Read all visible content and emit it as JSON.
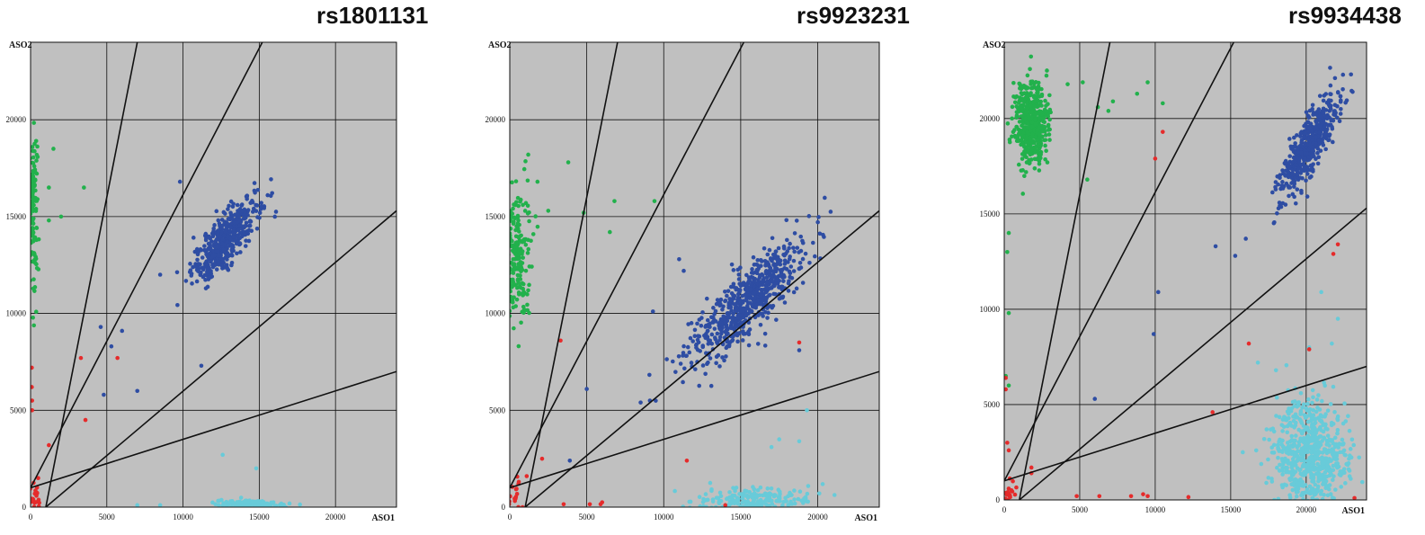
{
  "chart_data": [
    {
      "type": "scatter",
      "title": "rs1801131",
      "xlabel": "ASO1",
      "ylabel": "ASO2",
      "xlim": [
        0,
        24000
      ],
      "ylim": [
        0,
        24000
      ],
      "xticks": [
        0,
        5000,
        10000,
        15000,
        20000
      ],
      "yticks": [
        0,
        5000,
        10000,
        15000,
        20000
      ],
      "grid": true,
      "cluster_lines": [
        {
          "x1": 1000,
          "y1": 0,
          "x2": 7000,
          "y2": 24000
        },
        {
          "x1": 0,
          "y1": 1000,
          "x2": 15200,
          "y2": 24000
        },
        {
          "x1": 1000,
          "y1": 0,
          "x2": 24000,
          "y2": 15300
        },
        {
          "x1": 0,
          "y1": 1000,
          "x2": 24000,
          "y2": 7000
        }
      ],
      "series": [
        {
          "color": "#22b14c",
          "clusters": [
            {
              "cx": 150,
              "cy": 15500,
              "sx": 150,
              "sy": 2000,
              "n": 140
            }
          ],
          "points": [
            [
              1200,
              16500
            ],
            [
              1500,
              18500
            ],
            [
              2000,
              15000
            ],
            [
              3500,
              16500
            ],
            [
              1200,
              14800
            ]
          ]
        },
        {
          "color": "#2e4da3",
          "clusters": [
            {
              "cx": 12800,
              "cy": 13800,
              "sx": 1100,
              "sy": 1100,
              "corr": 0.8,
              "n": 450
            }
          ],
          "points": [
            [
              4600,
              9300
            ],
            [
              5300,
              8300
            ],
            [
              6000,
              9100
            ],
            [
              4800,
              5800
            ],
            [
              7000,
              6000
            ],
            [
              11200,
              7300
            ],
            [
              8500,
              12000
            ],
            [
              9800,
              16800
            ]
          ]
        },
        {
          "color": "#68cbd9",
          "clusters": [
            {
              "cx": 14500,
              "cy": 150,
              "sx": 1200,
              "sy": 120,
              "n": 130
            }
          ],
          "points": [
            [
              12600,
              2700
            ],
            [
              14800,
              2000
            ],
            [
              7000,
              100
            ],
            [
              8500,
              100
            ]
          ]
        },
        {
          "color": "#e52b2b",
          "clusters": [
            {
              "cx": 200,
              "cy": 300,
              "sx": 250,
              "sy": 300,
              "n": 25
            }
          ],
          "points": [
            [
              80,
              7200
            ],
            [
              80,
              6200
            ],
            [
              100,
              5500
            ],
            [
              100,
              5000
            ],
            [
              3300,
              7700
            ],
            [
              5700,
              7700
            ],
            [
              3600,
              4500
            ],
            [
              1200,
              3200
            ],
            [
              500,
              1500
            ]
          ]
        }
      ]
    },
    {
      "type": "scatter",
      "title": "rs9923231",
      "xlabel": "ASO1",
      "ylabel": "ASO2",
      "xlim": [
        0,
        24000
      ],
      "ylim": [
        0,
        24000
      ],
      "xticks": [
        0,
        5000,
        10000,
        15000,
        20000
      ],
      "yticks": [
        0,
        5000,
        10000,
        15000,
        20000
      ],
      "grid": true,
      "cluster_lines": [
        {
          "x1": 1000,
          "y1": 0,
          "x2": 7000,
          "y2": 24000
        },
        {
          "x1": 0,
          "y1": 1000,
          "x2": 15200,
          "y2": 24000
        },
        {
          "x1": 1000,
          "y1": 0,
          "x2": 24000,
          "y2": 15300
        },
        {
          "x1": 0,
          "y1": 1000,
          "x2": 24000,
          "y2": 7000
        }
      ],
      "series": [
        {
          "color": "#22b14c",
          "clusters": [
            {
              "cx": 400,
              "cy": 13000,
              "sx": 500,
              "sy": 1800,
              "n": 220
            }
          ],
          "points": [
            [
              3800,
              17800
            ],
            [
              4800,
              15200
            ],
            [
              6800,
              15800
            ],
            [
              9400,
              15800
            ],
            [
              6500,
              14200
            ],
            [
              2500,
              15300
            ],
            [
              1800,
              16800
            ],
            [
              1200,
              18200
            ]
          ]
        },
        {
          "color": "#2e4da3",
          "clusters": [
            {
              "cx": 15300,
              "cy": 10500,
              "sx": 1900,
              "sy": 1600,
              "corr": 0.85,
              "n": 650
            }
          ],
          "points": [
            [
              9300,
              10100
            ],
            [
              11000,
              12800
            ],
            [
              11300,
              12200
            ],
            [
              8500,
              5400
            ],
            [
              9100,
              5500
            ],
            [
              5000,
              6100
            ],
            [
              3900,
              2400
            ],
            [
              18800,
              8100
            ]
          ]
        },
        {
          "color": "#68cbd9",
          "clusters": [
            {
              "cx": 16000,
              "cy": 300,
              "sx": 2200,
              "sy": 350,
              "n": 220
            }
          ],
          "points": [
            [
              19300,
              5000
            ],
            [
              18800,
              3400
            ],
            [
              17000,
              3100
            ],
            [
              17500,
              3500
            ]
          ]
        },
        {
          "color": "#e52b2b",
          "clusters": [
            {
              "cx": 300,
              "cy": 400,
              "sx": 350,
              "sy": 600,
              "n": 25
            }
          ],
          "points": [
            [
              3300,
              8600
            ],
            [
              2100,
              2500
            ],
            [
              1100,
              1600
            ],
            [
              11500,
              2400
            ],
            [
              18800,
              8500
            ],
            [
              3500,
              150
            ],
            [
              5200,
              150
            ],
            [
              5900,
              150
            ],
            [
              6000,
              250
            ],
            [
              14000,
              100
            ]
          ]
        }
      ]
    },
    {
      "type": "scatter",
      "title": "rs9934438",
      "xlabel": "ASO1",
      "ylabel": "ASO2",
      "xlim": [
        0,
        24000
      ],
      "ylim": [
        0,
        24000
      ],
      "xticks": [
        0,
        5000,
        10000,
        15000,
        20000
      ],
      "yticks": [
        0,
        5000,
        10000,
        15000,
        20000
      ],
      "grid": true,
      "cluster_lines": [
        {
          "x1": 1000,
          "y1": 0,
          "x2": 7000,
          "y2": 24000
        },
        {
          "x1": 0,
          "y1": 1000,
          "x2": 15200,
          "y2": 24000
        },
        {
          "x1": 1000,
          "y1": 0,
          "x2": 24000,
          "y2": 15300
        },
        {
          "x1": 0,
          "y1": 1000,
          "x2": 24000,
          "y2": 7000
        }
      ],
      "series": [
        {
          "color": "#22b14c",
          "clusters": [
            {
              "cx": 1800,
              "cy": 19700,
              "sx": 550,
              "sy": 1100,
              "n": 500
            }
          ],
          "points": [
            [
              6200,
              20600
            ],
            [
              6900,
              20400
            ],
            [
              7200,
              20900
            ],
            [
              8800,
              21300
            ],
            [
              9500,
              21900
            ],
            [
              10500,
              20800
            ],
            [
              5200,
              21900
            ],
            [
              4200,
              21800
            ],
            [
              300,
              14000
            ],
            [
              200,
              13000
            ],
            [
              300,
              9800
            ],
            [
              100,
              6500
            ],
            [
              300,
              6000
            ],
            [
              5500,
              16800
            ]
          ]
        },
        {
          "color": "#2e4da3",
          "clusters": [
            {
              "cx": 20200,
              "cy": 18600,
              "sx": 1000,
              "sy": 1400,
              "corr": 0.85,
              "n": 500
            }
          ],
          "points": [
            [
              14000,
              13300
            ],
            [
              16000,
              13700
            ],
            [
              15300,
              12800
            ],
            [
              10200,
              10900
            ],
            [
              9900,
              8700
            ],
            [
              6000,
              5300
            ]
          ]
        },
        {
          "color": "#68cbd9",
          "clusters": [
            {
              "cx": 20300,
              "cy": 2300,
              "sx": 1200,
              "sy": 1500,
              "n": 700
            }
          ],
          "points": [
            [
              21000,
              10900
            ],
            [
              22100,
              9500
            ],
            [
              21700,
              8200
            ],
            [
              20200,
              8000
            ],
            [
              16800,
              7200
            ],
            [
              18000,
              6800
            ],
            [
              15800,
              2500
            ]
          ]
        },
        {
          "color": "#e52b2b",
          "clusters": [
            {
              "cx": 250,
              "cy": 300,
              "sx": 300,
              "sy": 300,
              "n": 25
            }
          ],
          "points": [
            [
              10500,
              19300
            ],
            [
              10000,
              17900
            ],
            [
              22100,
              13400
            ],
            [
              21800,
              12900
            ],
            [
              16200,
              8200
            ],
            [
              20200,
              7900
            ],
            [
              13800,
              4600
            ],
            [
              100,
              5800
            ],
            [
              100,
              6400
            ],
            [
              200,
              3000
            ],
            [
              300,
              2600
            ],
            [
              1800,
              1700
            ],
            [
              1800,
              1400
            ],
            [
              4800,
              200
            ],
            [
              6300,
              200
            ],
            [
              8400,
              200
            ],
            [
              9200,
              300
            ],
            [
              9500,
              200
            ],
            [
              12200,
              150
            ],
            [
              23200,
              100
            ]
          ]
        }
      ]
    }
  ]
}
